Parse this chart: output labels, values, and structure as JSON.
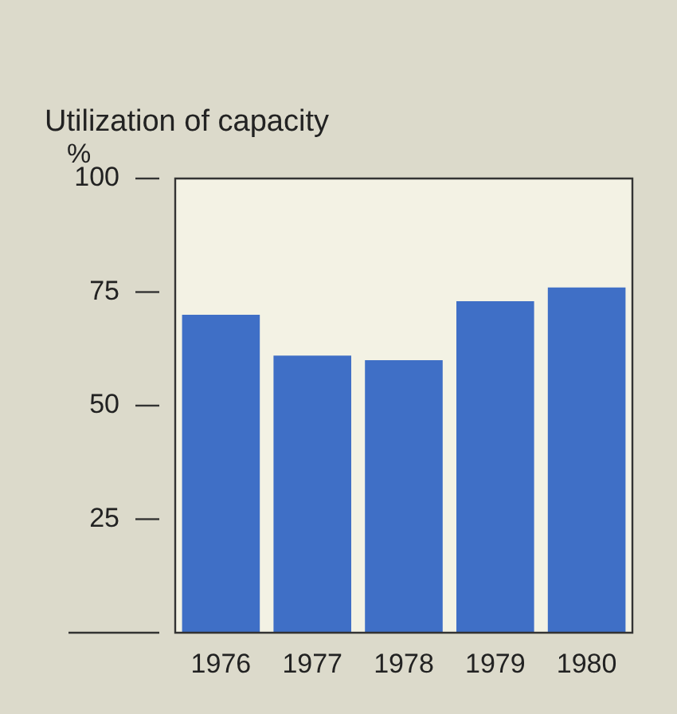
{
  "chart_data": {
    "type": "bar",
    "title": "Utilization of capacity",
    "ylabel": "%",
    "categories": [
      "1976",
      "1977",
      "1978",
      "1979",
      "1980"
    ],
    "values": [
      70,
      61,
      60,
      73,
      76
    ],
    "color": "#3f6fc6",
    "ylim": [
      0,
      100
    ],
    "yticks": [
      {
        "value": 0,
        "label": null
      },
      25,
      50,
      75,
      100
    ]
  }
}
